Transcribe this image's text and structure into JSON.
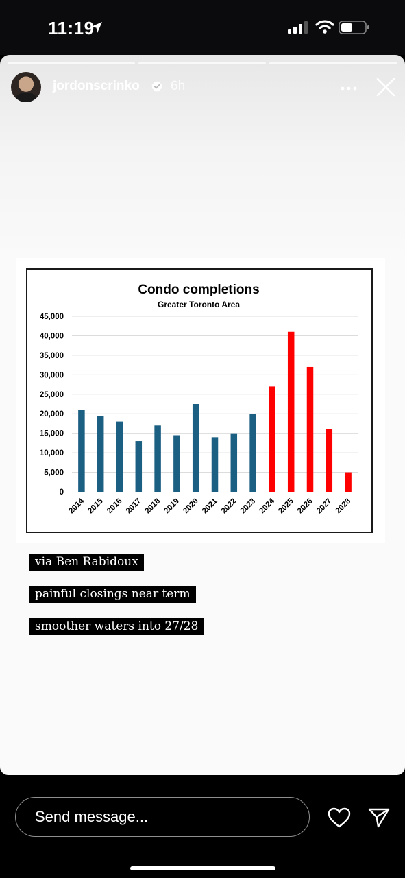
{
  "status_bar": {
    "time": "11:19",
    "location_icon": "location-arrow-icon",
    "signal_icon": "cellular-signal-icon",
    "wifi_icon": "wifi-icon",
    "battery_icon": "battery-icon"
  },
  "story": {
    "username": "jordonscrinko",
    "verified_icon": "verified-badge-icon",
    "time_ago": "6h",
    "more_icon": "more-options-icon",
    "close_icon": "close-icon",
    "progress_segments": 3,
    "captions": [
      "via Ben Rabidoux",
      "painful closings near term",
      "smoother waters into 27/28"
    ]
  },
  "chart_data": {
    "type": "bar",
    "title": "Condo completions",
    "subtitle": "Greater Toronto Area",
    "categories": [
      "2014",
      "2015",
      "2016",
      "2017",
      "2018",
      "2019",
      "2020",
      "2021",
      "2022",
      "2023",
      "2024",
      "2025",
      "2026",
      "2027",
      "2028"
    ],
    "values": [
      21000,
      19500,
      18000,
      13000,
      17000,
      14500,
      22500,
      14000,
      15000,
      20000,
      27000,
      41000,
      32000,
      16000,
      5000
    ],
    "colors": [
      "#1b5f82",
      "#1b5f82",
      "#1b5f82",
      "#1b5f82",
      "#1b5f82",
      "#1b5f82",
      "#1b5f82",
      "#1b5f82",
      "#1b5f82",
      "#1b5f82",
      "#ff0000",
      "#ff0000",
      "#ff0000",
      "#ff0000",
      "#ff0000"
    ],
    "yticks": [
      "0",
      "5,000",
      "10,000",
      "15,000",
      "20,000",
      "25,000",
      "30,000",
      "35,000",
      "40,000",
      "45,000"
    ],
    "ylim": [
      0,
      45000
    ],
    "grid": true,
    "xlabel": "",
    "ylabel": ""
  },
  "bottom": {
    "message_placeholder": "Send message...",
    "heart_icon": "heart-icon",
    "send_icon": "paper-plane-send-icon"
  }
}
